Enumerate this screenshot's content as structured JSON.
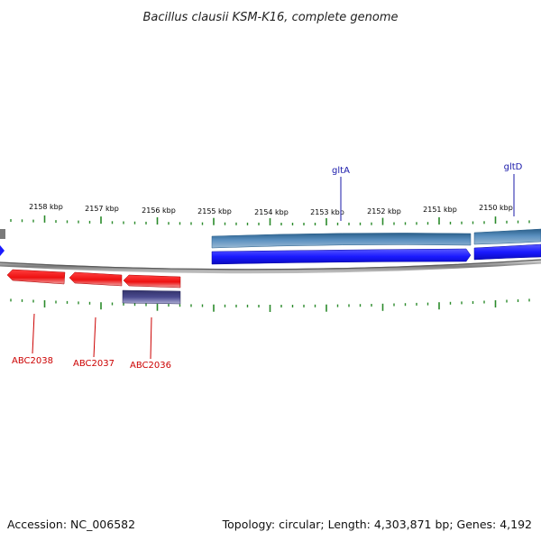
{
  "title": "Bacillus clausii KSM-K16, complete genome",
  "footer": {
    "accession": "Accession: NC_006582",
    "summary": "Topology: circular; Length: 4,303,871 bp; Genes: 4,192"
  },
  "scale_labels": [
    "2158 kbp",
    "2157 kbp",
    "2156 kbp",
    "2155 kbp",
    "2154 kbp",
    "2153 kbp",
    "2152 kbp",
    "2151 kbp",
    "2150 kbp"
  ],
  "gene_labels": {
    "top": [
      "gltA",
      "gltD"
    ],
    "bottom": [
      "ABC2038",
      "ABC2037",
      "ABC2036"
    ]
  },
  "colors": {
    "forward_cds": "#1a1aff",
    "forward_feature": "#4a7fb0",
    "reverse_cds": "#ee1111",
    "reverse_feature": "#4a4a8f",
    "backbone": "#8a8a8a",
    "ticks": "#2a8a2a",
    "label_forward": "#1a1aaa",
    "label_reverse": "#cc0000"
  }
}
